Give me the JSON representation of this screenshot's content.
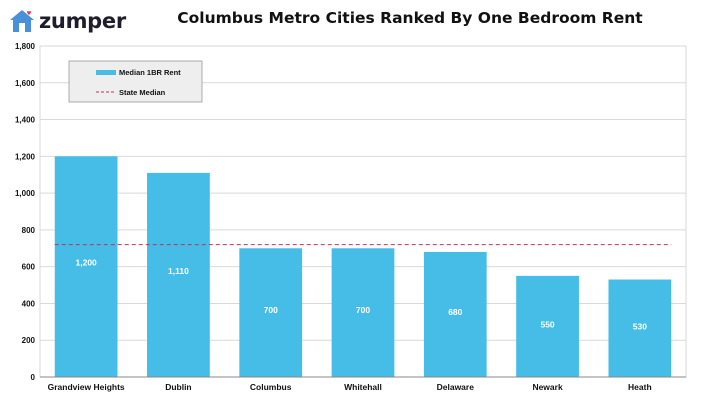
{
  "brand": {
    "name": "zumper",
    "icon": "house-icon",
    "accent": "#4a90d9",
    "heart_color": "#e5396b"
  },
  "colors": {
    "bar": "#45bde6",
    "state_median": "#c0306a",
    "grid": "#d9d9d9",
    "legend_bg": "#eeeeee",
    "legend_border": "#999999"
  },
  "chart_data": {
    "type": "bar",
    "title": "Columbus Metro Cities Ranked By One Bedroom Rent",
    "categories": [
      "Grandview Heights",
      "Dublin",
      "Columbus",
      "Whitehall",
      "Delaware",
      "Newark",
      "Heath"
    ],
    "series": [
      {
        "name": "Median 1BR Rent",
        "values": [
          1200,
          1110,
          700,
          700,
          680,
          550,
          530
        ]
      }
    ],
    "data_labels": [
      "1,200",
      "1,110",
      "700",
      "700",
      "680",
      "550",
      "530"
    ],
    "reference_line": {
      "name": "State Median",
      "value": 720
    },
    "ylim": [
      0,
      1800
    ],
    "yticks": [
      0,
      200,
      400,
      600,
      800,
      1000,
      1200,
      1400,
      1600,
      1800
    ],
    "ytick_labels": [
      "0",
      "200",
      "400",
      "600",
      "800",
      "1,000",
      "1,200",
      "1,400",
      "1,600",
      "1,800"
    ],
    "grid": true,
    "legend": {
      "placement": "top-left",
      "entries": [
        "Median 1BR Rent",
        "State Median"
      ]
    }
  }
}
